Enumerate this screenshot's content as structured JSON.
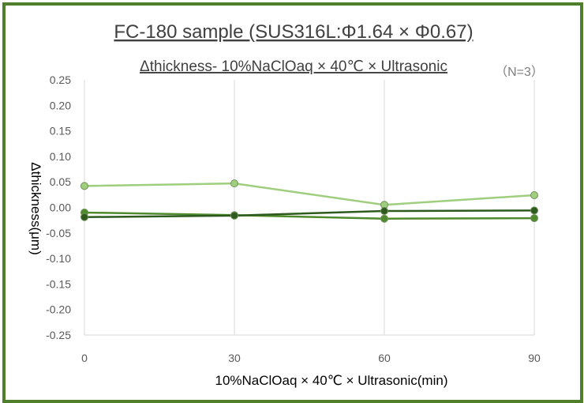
{
  "chart_data": {
    "type": "line",
    "title": "FC-180 sample (SUS316L:Φ1.64 × Φ0.67)",
    "subtitle": "Δthickness- 10%NaClOaq × 40℃ × Ultrasonic",
    "note": "（N=3）",
    "xlabel": "10%NaClOaq × 40℃ × Ultrasonic(min)",
    "ylabel": "Δthickness(μm)",
    "x": [
      0,
      30,
      60,
      90
    ],
    "x_tick_labels": [
      "0",
      "30",
      "60",
      "90"
    ],
    "ylim": [
      -0.25,
      0.25
    ],
    "y_ticks": [
      0.25,
      0.2,
      0.15,
      0.1,
      0.05,
      0.0,
      -0.05,
      -0.1,
      -0.15,
      -0.2,
      -0.25
    ],
    "y_tick_labels": [
      "0.25",
      "0.20",
      "0.15",
      "0.10",
      "0.05",
      "0.00",
      "-0.05",
      "-0.10",
      "-0.15",
      "-0.20",
      "-0.25"
    ],
    "grid": "vertical",
    "legend": "none",
    "series": [
      {
        "values": [
          0.042,
          0.047,
          0.005,
          0.024
        ],
        "color": "#9fcf7e"
      },
      {
        "values": [
          -0.01,
          -0.015,
          -0.022,
          -0.021
        ],
        "color": "#4f8a2f"
      },
      {
        "values": [
          -0.019,
          -0.016,
          -0.007,
          -0.006
        ],
        "color": "#2e5a1e"
      }
    ],
    "frame_color": "#4f7f2a"
  }
}
